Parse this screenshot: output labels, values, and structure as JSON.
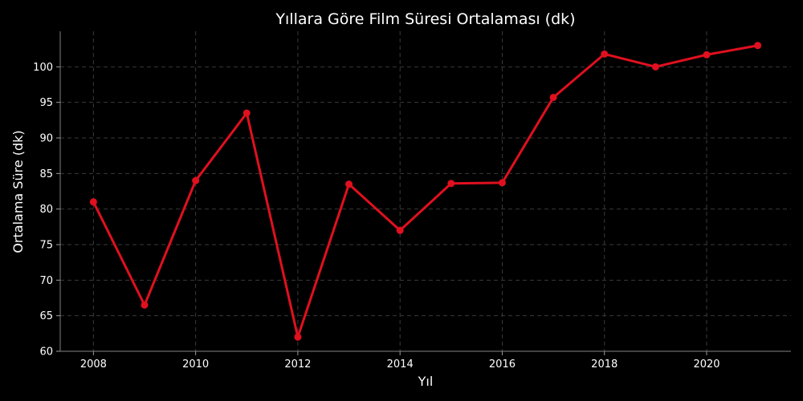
{
  "chart_data": {
    "type": "line",
    "title": "Yıllara Göre Film Süresi Ortalaması (dk)",
    "xlabel": "Yıl",
    "ylabel": "Ortalama Süre (dk)",
    "x": [
      2008,
      2009,
      2010,
      2011,
      2012,
      2013,
      2014,
      2015,
      2016,
      2017,
      2018,
      2019,
      2020,
      2021
    ],
    "series": [
      {
        "values": [
          81.0,
          66.5,
          84.0,
          93.5,
          62.0,
          83.5,
          77.0,
          83.6,
          83.7,
          95.7,
          101.8,
          100.0,
          101.7,
          103.0
        ],
        "color": "#e0101f"
      }
    ],
    "xlim": [
      2007.35,
      2021.65
    ],
    "ylim": [
      60,
      105
    ],
    "xticks": [
      "2008",
      "2010",
      "2012",
      "2014",
      "2016",
      "2018",
      "2020"
    ],
    "yticks": [
      "60",
      "65",
      "70",
      "75",
      "80",
      "85",
      "90",
      "95",
      "100"
    ],
    "grid": true,
    "grid_style": "dashed",
    "background": "#000000",
    "text_color": "#ffffff"
  }
}
